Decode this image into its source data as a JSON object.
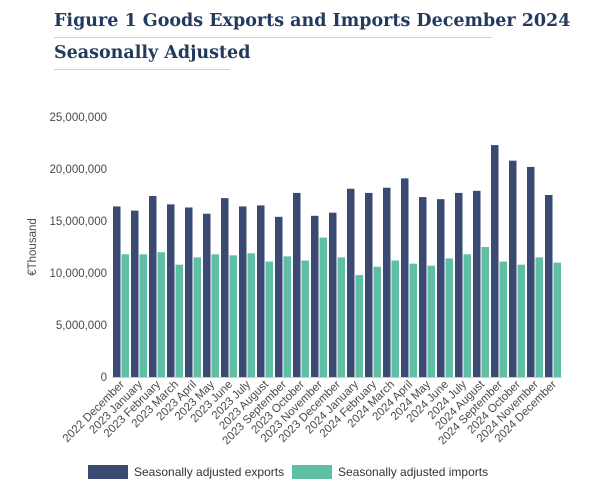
{
  "title": {
    "line1": "Figure 1 Goods Exports and Imports December 2024",
    "line2": "Seasonally Adjusted"
  },
  "colors": {
    "exports": "#3b4a73",
    "imports": "#5fbfa5",
    "axis": "#cccccc",
    "text": "#4a4a4a",
    "title": "#223a5e"
  },
  "chart_data": {
    "type": "bar",
    "title": "Figure 1 Goods Exports and Imports December 2024 Seasonally Adjusted",
    "xlabel": "",
    "ylabel": "€Thousand",
    "ylim": [
      0,
      25000000
    ],
    "yticks": [
      0,
      5000000,
      10000000,
      15000000,
      20000000,
      25000000
    ],
    "ytick_labels": [
      "0",
      "5,000,000",
      "10,000,000",
      "15,000,000",
      "20,000,000",
      "25,000,000"
    ],
    "grid": false,
    "legend_position": "bottom",
    "categories": [
      "2022 December",
      "2023 January",
      "2023 February",
      "2023 March",
      "2023 April",
      "2023 May",
      "2023 June",
      "2023 July",
      "2023 August",
      "2023 September",
      "2023 October",
      "2023 November",
      "2023 December",
      "2024 January",
      "2024 February",
      "2024 March",
      "2024 April",
      "2024 May",
      "2024 June",
      "2024 July",
      "2024 August",
      "2024 September",
      "2024 October",
      "2024 November",
      "2024 December"
    ],
    "series": [
      {
        "name": "Seasonally adjusted exports",
        "color": "#3b4a73",
        "values": [
          16400000,
          16000000,
          17400000,
          16600000,
          16300000,
          15700000,
          17200000,
          16400000,
          16500000,
          15400000,
          17700000,
          15500000,
          15800000,
          18100000,
          17700000,
          18200000,
          19100000,
          17300000,
          17100000,
          17700000,
          17900000,
          22300000,
          20800000,
          20200000,
          17500000
        ]
      },
      {
        "name": "Seasonally adjusted imports",
        "color": "#5fbfa5",
        "values": [
          11800000,
          11800000,
          12000000,
          10800000,
          11500000,
          11800000,
          11700000,
          11900000,
          11100000,
          11600000,
          11200000,
          13400000,
          11500000,
          9800000,
          10600000,
          11200000,
          10900000,
          10700000,
          11400000,
          11800000,
          12500000,
          11100000,
          10800000,
          11500000,
          11000000
        ]
      }
    ]
  }
}
